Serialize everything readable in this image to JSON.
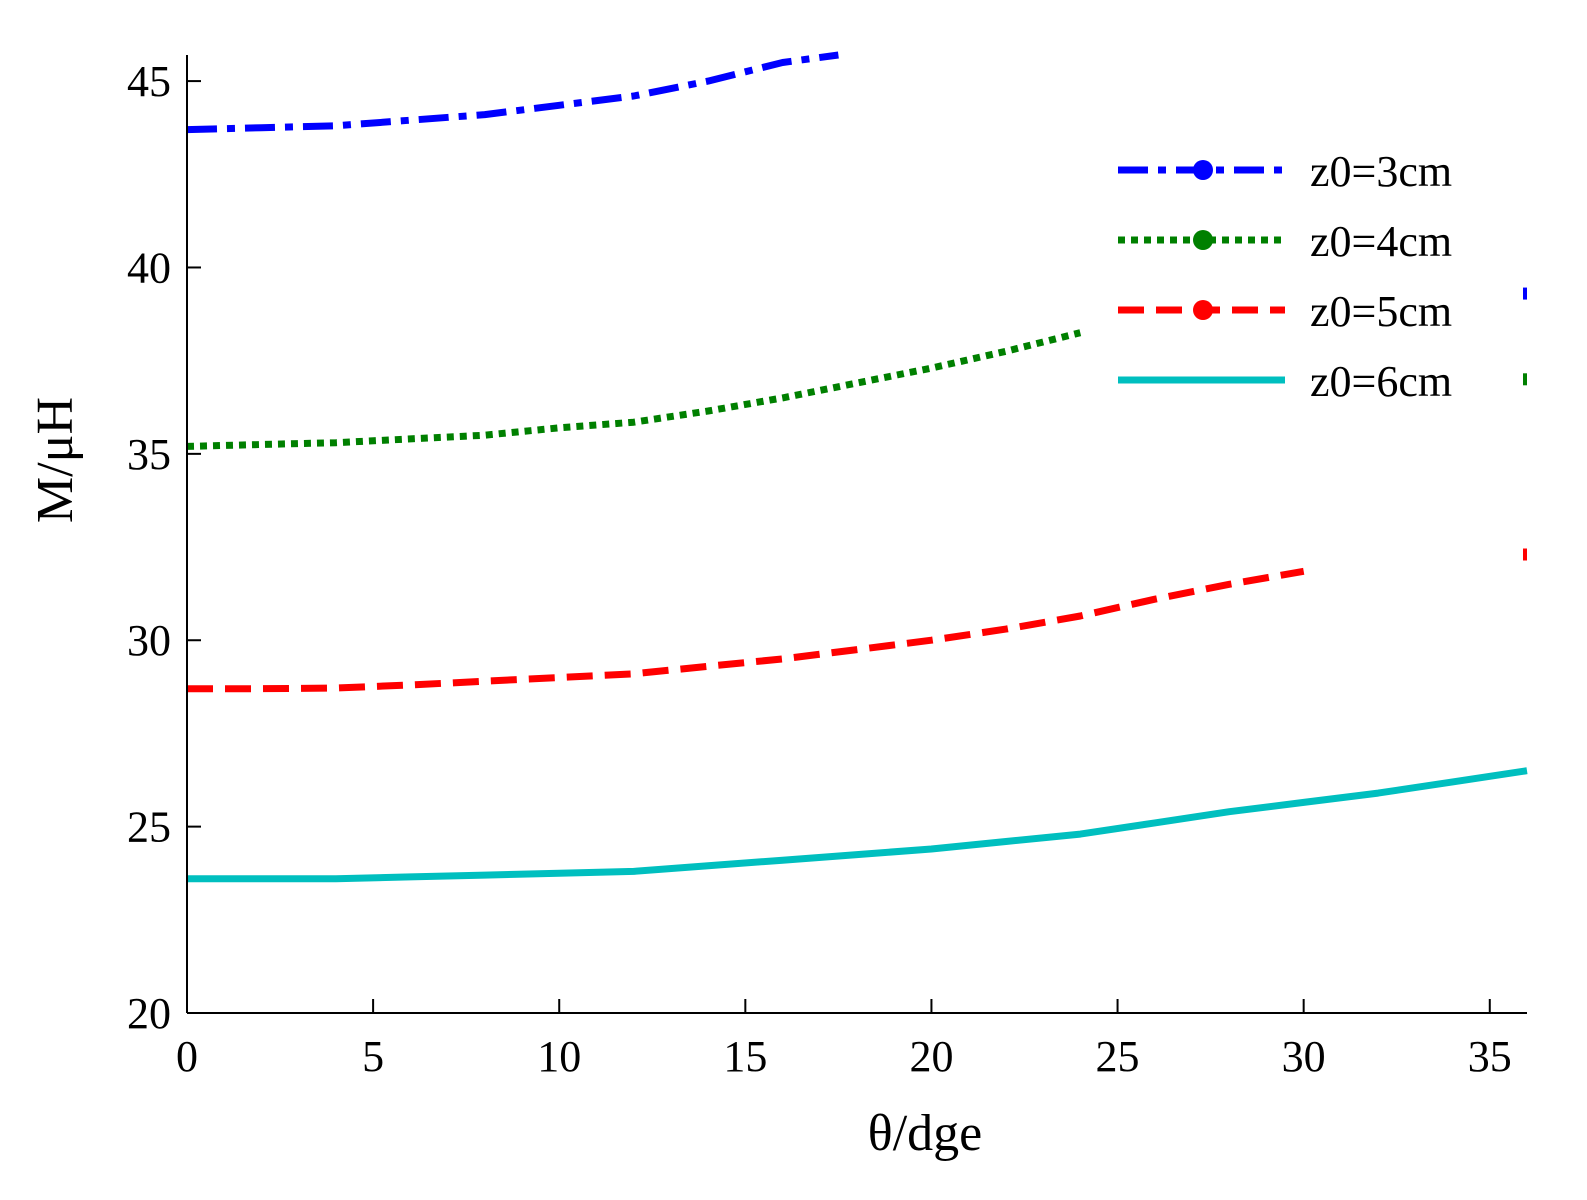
{
  "chart_data": {
    "type": "line",
    "title": "",
    "xlabel": "θ/dge",
    "ylabel": "M/μH",
    "xlim": [
      0,
      36
    ],
    "ylim": [
      20,
      45.7
    ],
    "xticks": [
      0,
      5,
      10,
      15,
      20,
      25,
      30,
      35
    ],
    "yticks": [
      20,
      25,
      30,
      35,
      40,
      45
    ],
    "xtick_labels": [
      "0",
      "5",
      "10",
      "15",
      "20",
      "25",
      "30",
      "35"
    ],
    "ytick_labels": [
      "20",
      "25",
      "30",
      "35",
      "40",
      "45"
    ],
    "grid": false,
    "legend_position": "top-right",
    "series": [
      {
        "name": "z0=3cm",
        "color": "#0000ff",
        "style": "dashdot",
        "x": [
          0,
          2,
          4,
          6,
          8,
          10,
          12,
          14,
          16,
          17.5
        ],
        "y": [
          43.7,
          43.75,
          43.8,
          43.95,
          44.1,
          44.35,
          44.6,
          45.0,
          45.5,
          45.7
        ]
      },
      {
        "name": "z0=4cm",
        "color": "#008000",
        "style": "dotted",
        "x": [
          0,
          2,
          4,
          6,
          8,
          10,
          12,
          14,
          16,
          18,
          20,
          22,
          24
        ],
        "y": [
          35.2,
          35.25,
          35.3,
          35.4,
          35.5,
          35.7,
          35.85,
          36.15,
          36.5,
          36.9,
          37.3,
          37.75,
          38.25
        ]
      },
      {
        "name": "z0=5cm",
        "color": "#ff0000",
        "style": "dashed",
        "x": [
          0,
          2,
          4,
          6,
          8,
          10,
          12,
          14,
          16,
          18,
          20,
          22,
          24,
          26,
          28,
          30
        ],
        "y": [
          28.7,
          28.7,
          28.72,
          28.8,
          28.9,
          29.0,
          29.1,
          29.3,
          29.5,
          29.75,
          30.0,
          30.3,
          30.65,
          31.1,
          31.5,
          31.85
        ]
      },
      {
        "name": "z0=6cm",
        "color": "#00bfbf",
        "style": "solid",
        "x": [
          0,
          2,
          4,
          6,
          8,
          10,
          12,
          14,
          16,
          18,
          20,
          22,
          24,
          26,
          28,
          30,
          32,
          34,
          36
        ],
        "y": [
          23.6,
          23.6,
          23.6,
          23.65,
          23.7,
          23.75,
          23.8,
          23.95,
          24.1,
          24.25,
          24.4,
          24.6,
          24.8,
          25.1,
          25.4,
          25.65,
          25.9,
          26.2,
          26.5
        ]
      }
    ]
  }
}
